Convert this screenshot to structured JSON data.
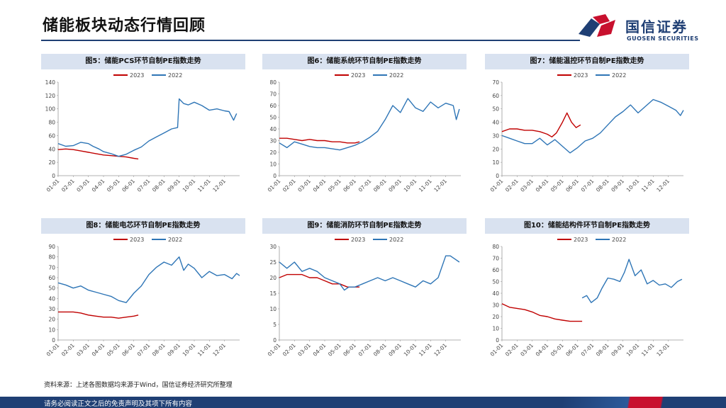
{
  "page": {
    "title": "储能板块动态行情回顾",
    "source": "资料来源：上述各图数据均来源于Wind，国信证券经济研究所整理",
    "footer": "请务必阅读正文之后的免责声明及其项下所有内容"
  },
  "logo": {
    "cn": "国信证券",
    "en": "GUOSEN SECURITIES"
  },
  "colors": {
    "s2023": "#c00000",
    "s2022": "#2e75b6",
    "header_bg": "#d9e2f0",
    "brand": "#1f3f74"
  },
  "chart_data": [
    {
      "type": "line",
      "title": "图5：储能PCS环节自制PE指数走势",
      "x_ticks": [
        "01-01",
        "02-01",
        "03-01",
        "04-01",
        "05-01",
        "06-01",
        "07-01",
        "08-01",
        "09-01",
        "10-01",
        "11-01",
        "12-01"
      ],
      "ylim": [
        0,
        140
      ],
      "yticks": [
        0,
        20,
        40,
        60,
        80,
        100,
        120,
        140
      ],
      "legend": "top-center",
      "series": [
        {
          "name": "2023",
          "color": "#c00000",
          "x": [
            0,
            0.5,
            1,
            1.5,
            2,
            2.5,
            3,
            3.5,
            4,
            4.5,
            5,
            5.3
          ],
          "values": [
            39,
            40,
            39,
            37,
            35,
            33,
            31,
            30,
            29,
            28,
            26,
            25
          ]
        },
        {
          "name": "2022",
          "color": "#2e75b6",
          "x": [
            0,
            0.5,
            1,
            1.5,
            2,
            2.3,
            2.7,
            3,
            3.5,
            4,
            4.5,
            5,
            5.5,
            6,
            6.5,
            7,
            7.5,
            7.9,
            8,
            8.3,
            8.6,
            9,
            9.5,
            10,
            10.5,
            11,
            11.3,
            11.6,
            11.8
          ],
          "values": [
            48,
            44,
            45,
            50,
            48,
            44,
            40,
            36,
            33,
            29,
            32,
            38,
            43,
            52,
            58,
            64,
            70,
            72,
            115,
            108,
            106,
            110,
            105,
            98,
            100,
            97,
            96,
            83,
            93
          ]
        }
      ]
    },
    {
      "type": "line",
      "title": "图6：储能系统环节自制PE指数走势",
      "x_ticks": [
        "01-01",
        "02-01",
        "03-01",
        "04-01",
        "05-01",
        "06-01",
        "07-01",
        "08-01",
        "09-01",
        "10-01",
        "11-01",
        "12-01"
      ],
      "ylim": [
        0,
        80
      ],
      "yticks": [
        0,
        10,
        20,
        30,
        40,
        50,
        60,
        70,
        80
      ],
      "legend": "top-center",
      "series": [
        {
          "name": "2023",
          "color": "#c00000",
          "x": [
            0,
            0.5,
            1,
            1.5,
            2,
            2.5,
            3,
            3.5,
            4,
            4.5,
            5,
            5.3
          ],
          "values": [
            32,
            32,
            31,
            30,
            31,
            30,
            30,
            29,
            29,
            28,
            28,
            29
          ]
        },
        {
          "name": "2022",
          "color": "#2e75b6",
          "x": [
            0,
            0.5,
            1,
            1.5,
            2,
            2.5,
            3,
            3.5,
            4,
            4.5,
            5,
            5.5,
            6,
            6.5,
            7,
            7.5,
            8,
            8.5,
            9,
            9.5,
            10,
            10.5,
            11,
            11.5,
            11.7,
            11.9
          ],
          "values": [
            28,
            24,
            29,
            27,
            25,
            24,
            24,
            23,
            22,
            24,
            26,
            29,
            33,
            38,
            48,
            60,
            54,
            66,
            58,
            55,
            63,
            58,
            62,
            60,
            48,
            57
          ]
        }
      ]
    },
    {
      "type": "line",
      "title": "图7：储能温控环节自制PE指数走势",
      "x_ticks": [
        "01-01",
        "02-01",
        "03-01",
        "04-01",
        "05-01",
        "06-01",
        "07-01",
        "08-01",
        "09-01",
        "10-01",
        "11-01",
        "12-01"
      ],
      "ylim": [
        0,
        70
      ],
      "yticks": [
        0,
        10,
        20,
        30,
        40,
        50,
        60,
        70
      ],
      "legend": "top-center",
      "series": [
        {
          "name": "2023",
          "color": "#c00000",
          "x": [
            0,
            0.5,
            1,
            1.5,
            2,
            2.5,
            3,
            3.3,
            3.6,
            4,
            4.3,
            4.6,
            4.9,
            5.2
          ],
          "values": [
            33,
            35,
            35,
            34,
            34,
            33,
            31,
            29,
            32,
            40,
            47,
            40,
            36,
            38
          ]
        },
        {
          "name": "2022",
          "color": "#2e75b6",
          "x": [
            0,
            0.5,
            1,
            1.5,
            2,
            2.5,
            3,
            3.5,
            4,
            4.5,
            5,
            5.5,
            6,
            6.5,
            7,
            7.5,
            8,
            8.5,
            9,
            9.5,
            10,
            10.5,
            11,
            11.5,
            11.8,
            12
          ],
          "values": [
            30,
            28,
            26,
            24,
            24,
            28,
            23,
            27,
            22,
            17,
            21,
            26,
            28,
            32,
            38,
            44,
            48,
            53,
            47,
            52,
            57,
            55,
            52,
            49,
            45,
            49
          ]
        }
      ]
    },
    {
      "type": "line",
      "title": "图8：储能电芯环节自制PE指数走势",
      "x_ticks": [
        "01-01",
        "02-01",
        "03-01",
        "04-01",
        "05-01",
        "06-01",
        "07-01",
        "08-01",
        "09-01",
        "10-01",
        "11-01",
        "12-01"
      ],
      "ylim": [
        0,
        90
      ],
      "yticks": [
        0,
        10,
        20,
        30,
        40,
        50,
        60,
        70,
        80,
        90
      ],
      "legend": "top-center",
      "series": [
        {
          "name": "2023",
          "color": "#c00000",
          "x": [
            0,
            0.5,
            1,
            1.5,
            2,
            2.5,
            3,
            3.5,
            4,
            4.5,
            5,
            5.3
          ],
          "values": [
            27,
            27,
            27,
            26,
            24,
            23,
            22,
            22,
            21,
            22,
            23,
            24
          ]
        },
        {
          "name": "2022",
          "color": "#2e75b6",
          "x": [
            0,
            0.5,
            1,
            1.5,
            2,
            2.5,
            3,
            3.5,
            4,
            4.5,
            5,
            5.5,
            6,
            6.5,
            7,
            7.5,
            8,
            8.3,
            8.6,
            9,
            9.5,
            10,
            10.5,
            11,
            11.5,
            11.8,
            12
          ],
          "values": [
            55,
            53,
            50,
            52,
            48,
            46,
            44,
            42,
            38,
            36,
            45,
            52,
            63,
            70,
            75,
            72,
            80,
            67,
            73,
            69,
            60,
            66,
            62,
            63,
            59,
            64,
            62
          ]
        }
      ]
    },
    {
      "type": "line",
      "title": "图9：储能消防环节自制PE指数走势",
      "x_ticks": [
        "01-01",
        "02-01",
        "03-01",
        "04-01",
        "05-01",
        "06-01",
        "07-01",
        "08-01",
        "09-01",
        "10-01",
        "11-01",
        "12-01"
      ],
      "ylim": [
        0,
        30
      ],
      "yticks": [
        0,
        5,
        10,
        15,
        20,
        25,
        30
      ],
      "legend": "top-center",
      "series": [
        {
          "name": "2023",
          "color": "#c00000",
          "x": [
            0,
            0.5,
            1,
            1.5,
            2,
            2.5,
            3,
            3.5,
            4,
            4.5,
            5,
            5.3
          ],
          "values": [
            20,
            21,
            21,
            21,
            20,
            20,
            19,
            18,
            18,
            17,
            17,
            17
          ]
        },
        {
          "name": "2022",
          "color": "#2e75b6",
          "x": [
            0,
            0.5,
            1,
            1.5,
            2,
            2.5,
            3,
            3.5,
            4,
            4.3,
            4.6,
            5,
            5.5,
            6,
            6.5,
            7,
            7.5,
            8,
            8.5,
            9,
            9.5,
            10,
            10.5,
            11,
            11.3,
            11.6,
            11.9
          ],
          "values": [
            25,
            23,
            25,
            22,
            23,
            22,
            20,
            19,
            18,
            16,
            17,
            17,
            18,
            19,
            20,
            19,
            20,
            19,
            18,
            17,
            19,
            18,
            20,
            27,
            27,
            26,
            25
          ]
        }
      ]
    },
    {
      "type": "line",
      "title": "图10：储能结构件环节自制PE指数走势",
      "x_ticks": [
        "01-01",
        "02-01",
        "03-01",
        "04-01",
        "05-01",
        "06-01",
        "07-01",
        "08-01",
        "09-01",
        "10-01",
        "11-01",
        "12-01"
      ],
      "ylim": [
        0,
        80
      ],
      "yticks": [
        0,
        10,
        20,
        30,
        40,
        50,
        60,
        70,
        80
      ],
      "legend": "top-center",
      "series": [
        {
          "name": "2023",
          "color": "#c00000",
          "x": [
            0,
            0.5,
            1,
            1.5,
            2,
            2.5,
            3,
            3.5,
            4,
            4.5,
            5,
            5.3
          ],
          "values": [
            31,
            28,
            27,
            26,
            24,
            21,
            20,
            18,
            17,
            16,
            16,
            16
          ]
        },
        {
          "name": "2022",
          "color": "#2e75b6",
          "x": [
            5.3,
            5.6,
            5.9,
            6.3,
            6.6,
            7,
            7.4,
            7.8,
            8.1,
            8.4,
            8.8,
            9.2,
            9.6,
            10,
            10.4,
            10.8,
            11.2,
            11.6,
            11.9
          ],
          "values": [
            36,
            38,
            32,
            36,
            44,
            53,
            52,
            50,
            58,
            69,
            55,
            60,
            48,
            51,
            47,
            48,
            45,
            50,
            52
          ]
        }
      ]
    }
  ]
}
